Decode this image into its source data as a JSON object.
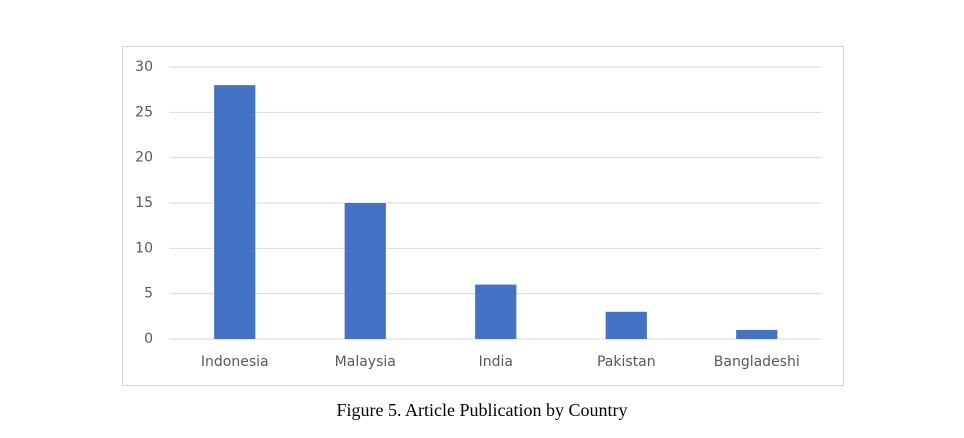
{
  "chart_data": {
    "type": "bar",
    "title": "Figure 5. Article Publication by Country",
    "categories": [
      "Indonesia",
      "Malaysia",
      "India",
      "Pakistan",
      "Bangladeshi"
    ],
    "values": [
      28,
      15,
      6,
      3,
      1
    ],
    "color": "#4472c4",
    "ylim": [
      0,
      30
    ],
    "yticks": [
      0,
      5,
      10,
      15,
      20,
      25,
      30
    ],
    "grid": true
  }
}
